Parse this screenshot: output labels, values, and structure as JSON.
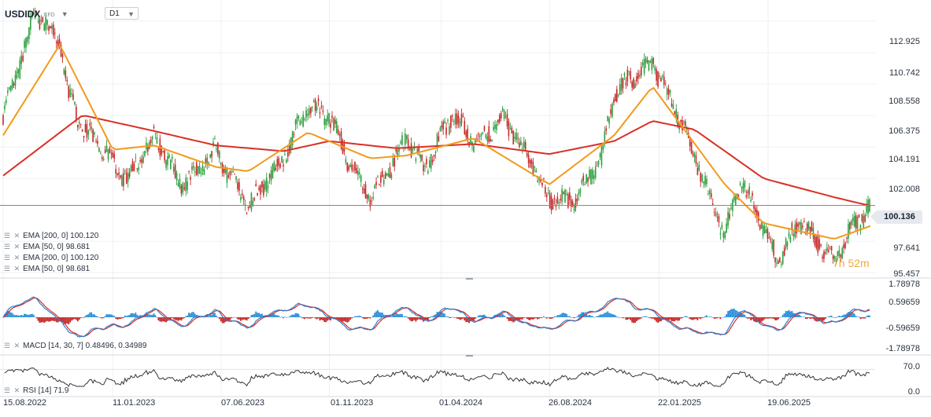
{
  "header": {
    "symbol": "USDIDX",
    "symbol_type": "CFD",
    "symbol_caret": "▼",
    "timeframe": "D1",
    "timeframe_caret": "▼"
  },
  "legend_icons": "☰ ✕",
  "price_legend": [
    "EMA [200,  0] 100.120",
    "EMA [50,  0] 98.681",
    "EMA [200,  0] 100.120",
    "EMA [50,  0] 98.681"
  ],
  "macd_legend": "MACD [14, 30, 7] 0.48496,  0.34989",
  "rsi_legend": "RSI [14] 71.9",
  "last_price": "100.136",
  "countdown": "7h 52m",
  "colors": {
    "candle_up": "#2e9e3e",
    "candle_down": "#c62828",
    "ema200": "#d93025",
    "ema50": "#f29a1a",
    "macd_line": "#2a7fd4",
    "signal_line": "#d93025",
    "hist_pos": "#2a8fd8",
    "hist_neg": "#c62828",
    "rsi_line": "#333333",
    "price_line": "#888888"
  },
  "chart_data": [
    {
      "type": "candlestick",
      "title": "USDIDX D1",
      "y_ticks": [
        "112.925",
        "110.742",
        "108.558",
        "106.375",
        "104.191",
        "102.008",
        "97.641",
        "95.457"
      ],
      "x_ticks": [
        "15.08.2022",
        "11.01.2023",
        "07.06.2023",
        "01.11.2023",
        "01.04.2024",
        "26.08.2024",
        "22.01.2025",
        "19.06.2025"
      ],
      "ylim": [
        95.2,
        114.4
      ],
      "last_value": 100.136,
      "series": [
        {
          "name": "EMA [200, 0]",
          "last": 100.12
        },
        {
          "name": "EMA [50, 0]",
          "last": 98.681
        }
      ],
      "close_path": [
        [
          "2022-08-15",
          106.3
        ],
        [
          "2022-09-01",
          109.0
        ],
        [
          "2022-09-27",
          113.5
        ],
        [
          "2022-10-12",
          112.5
        ],
        [
          "2022-10-31",
          111.5
        ],
        [
          "2022-11-10",
          108.0
        ],
        [
          "2022-12-01",
          105.5
        ],
        [
          "2022-12-30",
          104.0
        ],
        [
          "2023-01-11",
          103.0
        ],
        [
          "2023-01-31",
          102.0
        ],
        [
          "2023-03-08",
          105.0
        ],
        [
          "2023-04-14",
          101.5
        ],
        [
          "2023-05-31",
          104.0
        ],
        [
          "2023-06-14",
          102.5
        ],
        [
          "2023-07-14",
          100.1
        ],
        [
          "2023-08-31",
          103.5
        ],
        [
          "2023-10-03",
          107.0
        ],
        [
          "2023-11-01",
          106.3
        ],
        [
          "2023-11-29",
          103.0
        ],
        [
          "2023-12-27",
          100.7
        ],
        [
          "2024-01-31",
          103.5
        ],
        [
          "2024-02-14",
          104.9
        ],
        [
          "2024-03-08",
          102.7
        ],
        [
          "2024-04-16",
          106.4
        ],
        [
          "2024-05-15",
          104.5
        ],
        [
          "2024-06-26",
          106.1
        ],
        [
          "2024-08-05",
          102.8
        ],
        [
          "2024-08-26",
          100.6
        ],
        [
          "2024-09-27",
          100.4
        ],
        [
          "2024-11-05",
          103.5
        ],
        [
          "2024-11-22",
          108.0
        ],
        [
          "2025-01-13",
          110.0
        ],
        [
          "2025-02-14",
          106.7
        ],
        [
          "2025-03-11",
          103.6
        ],
        [
          "2025-04-21",
          98.0
        ],
        [
          "2025-05-12",
          101.9
        ],
        [
          "2025-06-13",
          98.6
        ],
        [
          "2025-07-01",
          96.4
        ],
        [
          "2025-08-01",
          99.0
        ],
        [
          "2025-09-17",
          96.3
        ],
        [
          "2025-10-09",
          98.5
        ],
        [
          "2025-11-05",
          100.1
        ]
      ],
      "ema50_path": [
        [
          "2022-08-15",
          105.0
        ],
        [
          "2022-10-31",
          111.3
        ],
        [
          "2023-01-11",
          104.0
        ],
        [
          "2023-03-08",
          104.3
        ],
        [
          "2023-05-31",
          102.8
        ],
        [
          "2023-07-14",
          102.5
        ],
        [
          "2023-10-03",
          105.2
        ],
        [
          "2023-12-27",
          103.4
        ],
        [
          "2024-02-14",
          103.6
        ],
        [
          "2024-05-15",
          104.8
        ],
        [
          "2024-08-26",
          101.6
        ],
        [
          "2024-11-22",
          105.0
        ],
        [
          "2025-01-13",
          108.4
        ],
        [
          "2025-04-21",
          101.6
        ],
        [
          "2025-06-13",
          98.9
        ],
        [
          "2025-09-17",
          97.8
        ],
        [
          "2025-11-05",
          98.7
        ]
      ],
      "ema200_path": [
        [
          "2022-08-15",
          102.2
        ],
        [
          "2022-12-01",
          106.4
        ],
        [
          "2023-03-08",
          105.3
        ],
        [
          "2023-05-31",
          104.3
        ],
        [
          "2023-08-31",
          103.9
        ],
        [
          "2023-11-01",
          104.6
        ],
        [
          "2024-01-31",
          104.1
        ],
        [
          "2024-05-15",
          104.4
        ],
        [
          "2024-08-26",
          103.7
        ],
        [
          "2024-11-22",
          104.6
        ],
        [
          "2025-01-13",
          106.0
        ],
        [
          "2025-03-11",
          105.4
        ],
        [
          "2025-06-13",
          102.0
        ],
        [
          "2025-09-17",
          100.7
        ],
        [
          "2025-11-05",
          100.1
        ]
      ]
    },
    {
      "type": "line",
      "title": "MACD [14, 30, 7]",
      "y_ticks": [
        "1.78978",
        "0.59659",
        "-0.59659",
        "-1.78978"
      ],
      "ylim": [
        -2.2,
        2.2
      ],
      "series": [
        {
          "name": "MACD",
          "last": 0.48496
        },
        {
          "name": "Signal",
          "last": 0.34989
        }
      ]
    },
    {
      "type": "line",
      "title": "RSI [14]",
      "y_ticks": [
        "70.0",
        "0.0"
      ],
      "ylim": [
        0,
        100
      ],
      "series": [
        {
          "name": "RSI",
          "last": 71.9
        }
      ]
    }
  ]
}
